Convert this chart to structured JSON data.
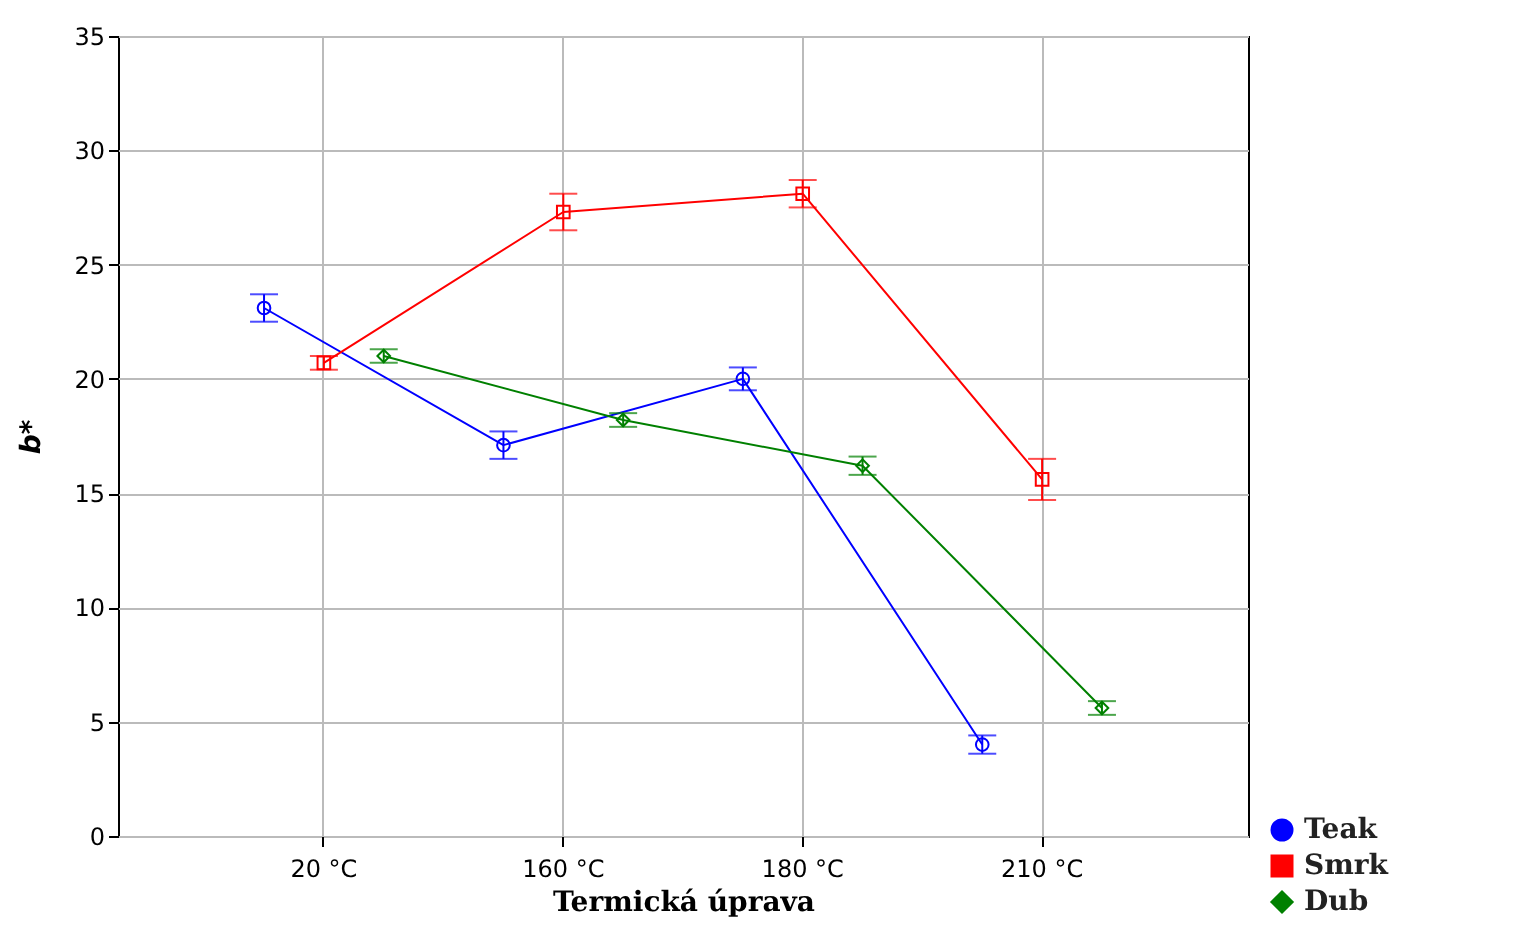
{
  "chart_data": {
    "type": "line",
    "xlabel": "Termická úprava",
    "ylabel": "b*",
    "categories": [
      "20 °C",
      "160 °C",
      "180 °C",
      "210 °C"
    ],
    "series": [
      {
        "name": "Teak",
        "color": "#0000ff",
        "marker": "circle",
        "values": [
          23.1,
          17.1,
          20.0,
          4.0
        ],
        "errors": [
          0.6,
          0.6,
          0.5,
          0.4
        ]
      },
      {
        "name": "Smrk",
        "color": "#ff0000",
        "marker": "square",
        "values": [
          20.7,
          27.3,
          28.1,
          15.6
        ],
        "errors": [
          0.3,
          0.8,
          0.6,
          0.9
        ]
      },
      {
        "name": "Dub",
        "color": "#008000",
        "marker": "diamond",
        "values": [
          21.0,
          18.2,
          16.2,
          5.6
        ],
        "errors": [
          0.3,
          0.3,
          0.4,
          0.3
        ]
      }
    ],
    "ylim": [
      0,
      35
    ],
    "yticks": [
      0,
      5,
      10,
      15,
      20,
      25,
      30,
      35
    ],
    "grid": true,
    "legend": "bottom right"
  }
}
